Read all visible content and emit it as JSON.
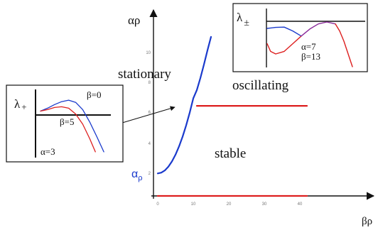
{
  "colors": {
    "blue": "#1a3acc",
    "red": "#dd1f1f",
    "axis": "#111111",
    "tick": "#777777"
  },
  "chart_data": [
    {
      "type": "line",
      "name": "main-phase-diagram",
      "xlabel": "βρ",
      "ylabel": "αρ",
      "xlim": [
        0,
        50
      ],
      "ylim": [
        0,
        10.5
      ],
      "x_ticks": [
        "0",
        "10",
        "20",
        "30",
        "40"
      ],
      "y_ticks": [
        "2",
        "4",
        "6",
        "8",
        "10"
      ],
      "annotations": [
        "stationary",
        "oscillating",
        "stable"
      ],
      "curve_marker_label": "α",
      "curve_marker_sub": "ρ",
      "series": [
        {
          "key": "stationary-boundary",
          "color": "#1a3acc",
          "x": [
            0,
            1,
            2,
            3,
            4,
            5,
            6,
            7,
            8,
            9,
            10,
            11,
            12,
            13,
            14,
            15
          ],
          "y": [
            1.5,
            1.55,
            1.7,
            1.95,
            2.3,
            2.75,
            3.3,
            3.95,
            4.7,
            5.55,
            6.5,
            7.05,
            7.85,
            8.75,
            9.7,
            10.6
          ]
        },
        {
          "key": "oscillating-boundary",
          "color": "#dd1f1f",
          "x": [
            11,
            42
          ],
          "y": [
            6.0,
            6.0
          ]
        },
        {
          "key": "baseline",
          "color": "#dd1f1f",
          "x": [
            0,
            42
          ],
          "y": [
            0,
            0
          ]
        }
      ]
    },
    {
      "type": "line",
      "name": "inset-left",
      "ylabel": "λ",
      "ylabel_sub": "+",
      "labels": [
        "β=0",
        "β=5",
        "α=3"
      ],
      "xlim": [
        0,
        10
      ],
      "ylim": [
        -6,
        2
      ],
      "series": [
        {
          "key": "beta-0",
          "color": "#1a3acc",
          "x": [
            0,
            1,
            2,
            3,
            4,
            5,
            6,
            7,
            8,
            9
          ],
          "y": [
            0,
            0.4,
            0.9,
            1.3,
            1.5,
            1.2,
            0.2,
            -1.5,
            -3.5,
            -5.6
          ]
        },
        {
          "key": "beta-5",
          "color": "#dd1f1f",
          "x": [
            0,
            1,
            2,
            3,
            4,
            5,
            6,
            7,
            7.8
          ],
          "y": [
            0,
            0.2,
            0.5,
            0.6,
            0.4,
            -0.4,
            -1.8,
            -3.8,
            -5.6
          ]
        }
      ]
    },
    {
      "type": "line",
      "name": "inset-right",
      "ylabel": "λ",
      "ylabel_sub": "±",
      "labels": [
        "α=7",
        "β=13"
      ],
      "xlim": [
        0,
        10
      ],
      "ylim": [
        -3,
        1.5
      ],
      "series": [
        {
          "key": "upper-blue",
          "color": "#1a3acc",
          "x": [
            0,
            1,
            2,
            3,
            4
          ],
          "y": [
            0,
            0.08,
            0.1,
            -0.2,
            -0.6
          ]
        },
        {
          "key": "complex-red",
          "color": "#dd1f1f",
          "x": [
            0,
            0.4,
            1,
            2,
            3,
            4
          ],
          "y": [
            -1.2,
            -1.8,
            -2.0,
            -1.8,
            -1.2,
            -0.6
          ]
        },
        {
          "key": "merged-purple",
          "color": "#8a2a9a",
          "x": [
            4,
            5,
            6,
            7,
            8
          ],
          "y": [
            -0.6,
            -0.05,
            0.35,
            0.5,
            0.35
          ]
        },
        {
          "key": "tail-red",
          "color": "#dd1f1f",
          "x": [
            8,
            8.5,
            9,
            9.5,
            10
          ],
          "y": [
            0.35,
            -0.2,
            -1.0,
            -2.0,
            -3.0
          ]
        }
      ]
    }
  ]
}
